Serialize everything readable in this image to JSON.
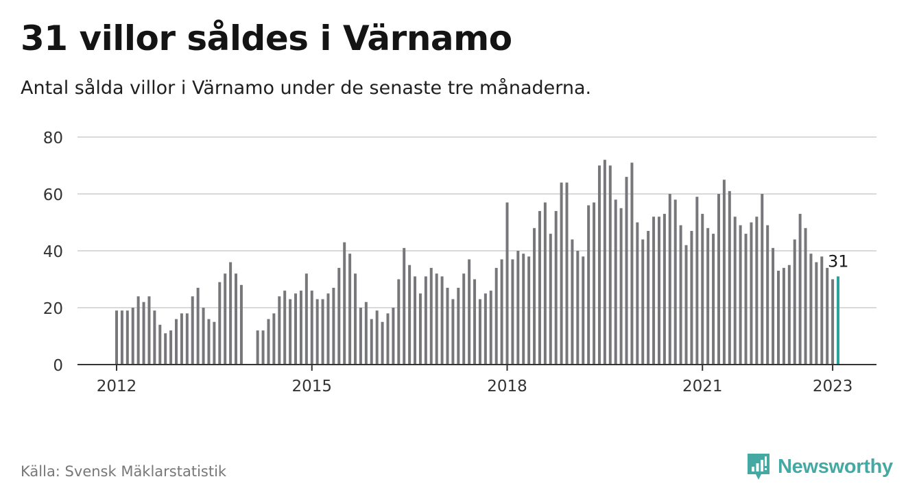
{
  "title": "31 villor såldes i Värnamo",
  "subtitle": "Antal sålda villor i Värnamo under de senaste tre månaderna.",
  "source": "Källa: Svensk Mäklarstatistik",
  "brand": {
    "name": "Newsworthy",
    "icon": "newsworthy-logo-icon",
    "color": "#44a9a3"
  },
  "chart_data": {
    "type": "bar",
    "x_start": "2012-01",
    "x_end": "2023-01",
    "x_ticks": [
      "2012",
      "2015",
      "2018",
      "2021",
      "2023"
    ],
    "ylim": [
      0,
      80
    ],
    "y_ticks": [
      0,
      20,
      40,
      60,
      80
    ],
    "bar_color": "#77777b",
    "highlight_color": "#2aa39a",
    "highlight_label": "31",
    "grid": true,
    "values": [
      19,
      19,
      19,
      20,
      24,
      22,
      24,
      19,
      14,
      11,
      12,
      16,
      18,
      18,
      24,
      27,
      20,
      16,
      15,
      29,
      32,
      36,
      32,
      28,
      null,
      null,
      12,
      12,
      16,
      18,
      24,
      26,
      23,
      25,
      26,
      32,
      26,
      23,
      23,
      25,
      27,
      34,
      43,
      39,
      32,
      20,
      22,
      16,
      19,
      15,
      18,
      20,
      30,
      41,
      35,
      31,
      25,
      31,
      34,
      32,
      31,
      27,
      23,
      27,
      32,
      37,
      30,
      23,
      25,
      26,
      34,
      37,
      57,
      37,
      40,
      39,
      38,
      48,
      54,
      57,
      46,
      54,
      64,
      64,
      44,
      40,
      38,
      56,
      57,
      70,
      72,
      70,
      58,
      55,
      66,
      71,
      50,
      44,
      47,
      52,
      52,
      53,
      60,
      58,
      49,
      42,
      47,
      59,
      53,
      48,
      46,
      60,
      65,
      61,
      52,
      49,
      46,
      50,
      52,
      60,
      49,
      41,
      33,
      34,
      35,
      44,
      53,
      48,
      39,
      36,
      38,
      34,
      30,
      31
    ]
  }
}
